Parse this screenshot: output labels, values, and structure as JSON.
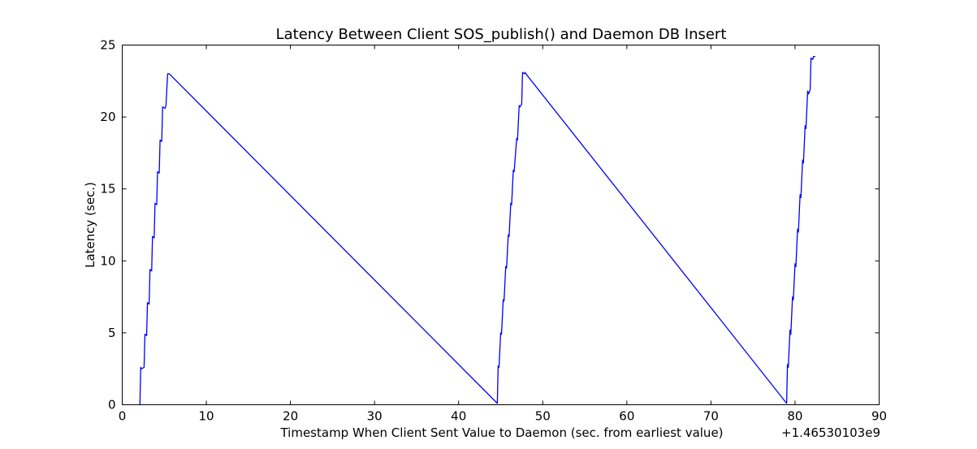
{
  "chart_data": {
    "type": "line",
    "title": "Latency Between Client SOS_publish() and Daemon DB Insert",
    "xlabel": "Timestamp When Client Sent Value to Daemon (sec. from earliest value)",
    "ylabel": "Latency (sec.)",
    "x_offset_label": "+1.46530103e9",
    "xlim": [
      0,
      90
    ],
    "ylim": [
      0,
      25
    ],
    "x_ticks": [
      0,
      10,
      20,
      30,
      40,
      50,
      60,
      70,
      80,
      90
    ],
    "y_ticks": [
      0,
      5,
      10,
      15,
      20,
      25
    ],
    "grid": false,
    "legend": "none",
    "series": [
      {
        "color": "#0000ff",
        "x": [
          2.1,
          2.2,
          2.3,
          2.6,
          2.7,
          2.9,
          3.0,
          3.2,
          3.3,
          3.5,
          3.6,
          3.8,
          3.9,
          4.1,
          4.2,
          4.4,
          4.5,
          4.7,
          4.8,
          5.1,
          5.2,
          5.4,
          5.6,
          44.6,
          44.7,
          44.8,
          45.0,
          45.1,
          45.3,
          45.4,
          45.6,
          45.7,
          45.9,
          46.0,
          46.2,
          46.3,
          46.5,
          46.6,
          46.9,
          47.0,
          47.2,
          47.3,
          47.5,
          47.6,
          47.8,
          47.9,
          48.0,
          79.0,
          79.1,
          79.2,
          79.4,
          79.5,
          79.7,
          79.8,
          80.0,
          80.1,
          80.3,
          80.4,
          80.6,
          80.7,
          80.9,
          81.0,
          81.2,
          81.3,
          81.5,
          81.6,
          81.8,
          81.9,
          82.1,
          82.2,
          82.4
        ],
        "y": [
          0.0,
          2.6,
          2.5,
          2.6,
          4.9,
          4.8,
          7.1,
          7.0,
          9.4,
          9.3,
          11.7,
          11.6,
          14.0,
          13.9,
          16.2,
          16.1,
          18.4,
          18.3,
          20.7,
          20.6,
          20.8,
          23.0,
          23.0,
          0.1,
          2.7,
          2.6,
          5.0,
          4.9,
          7.3,
          7.2,
          9.6,
          9.5,
          11.8,
          11.7,
          14.0,
          13.9,
          16.3,
          16.2,
          18.5,
          18.4,
          20.8,
          20.7,
          20.9,
          23.1,
          23.0,
          23.1,
          23.0,
          0.1,
          2.8,
          2.6,
          5.2,
          4.9,
          7.5,
          7.3,
          9.8,
          9.6,
          12.2,
          12.0,
          14.6,
          14.4,
          17.0,
          16.8,
          19.4,
          19.2,
          21.8,
          21.6,
          21.9,
          24.1,
          24.0,
          24.2,
          24.2
        ]
      }
    ]
  }
}
